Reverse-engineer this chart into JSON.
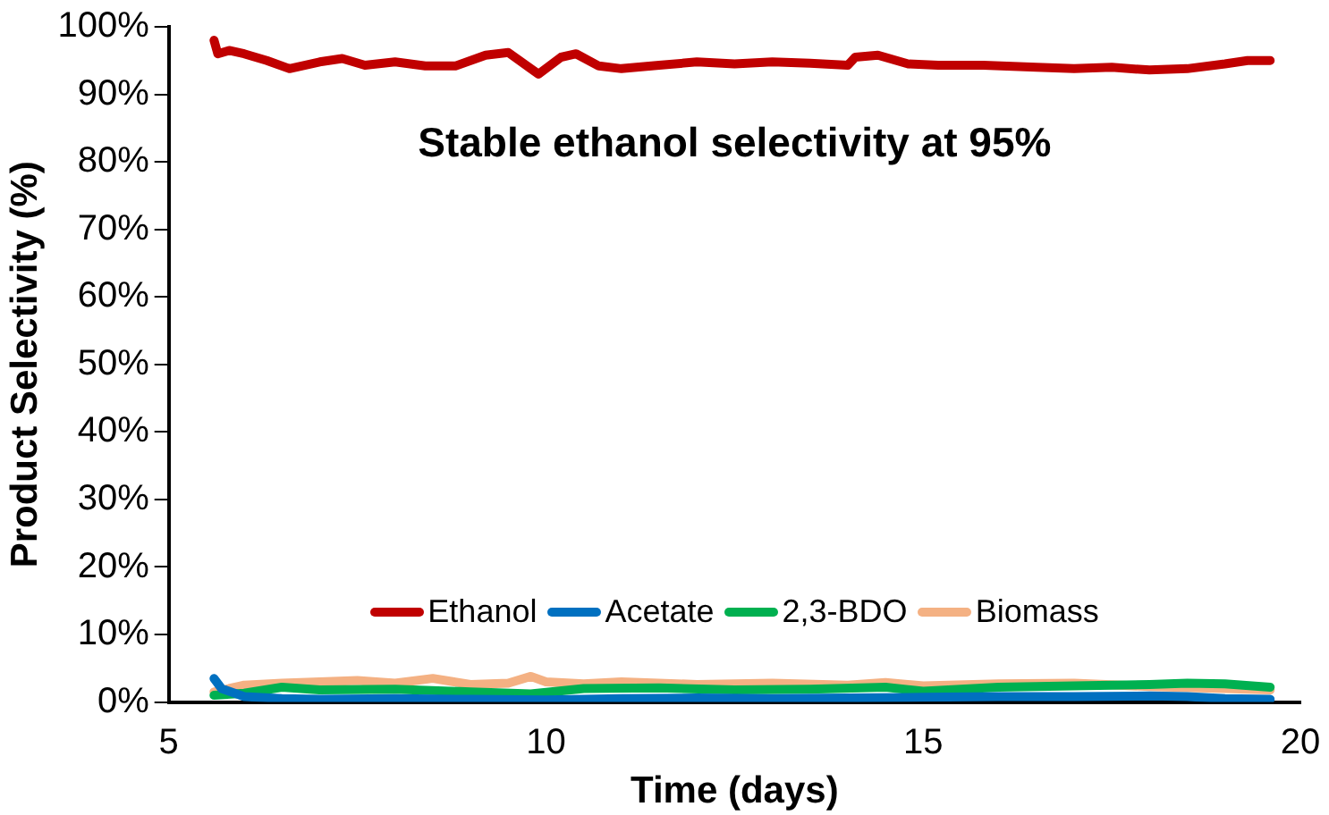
{
  "chart_data": {
    "type": "line",
    "xlabel": "Time (days)",
    "ylabel": "Product Selectivity (%)",
    "annotations": [
      "Stable ethanol selectivity at 95%"
    ],
    "xlim": [
      5,
      20
    ],
    "xticks": [
      5,
      10,
      15,
      20
    ],
    "ylim": [
      0,
      100
    ],
    "yticks": [
      {
        "value": 0,
        "label": "0%"
      },
      {
        "value": 10,
        "label": "10%"
      },
      {
        "value": 20,
        "label": "20%"
      },
      {
        "value": 30,
        "label": "30%"
      },
      {
        "value": 40,
        "label": "40%"
      },
      {
        "value": 50,
        "label": "50%"
      },
      {
        "value": 60,
        "label": "60%"
      },
      {
        "value": 70,
        "label": "70%"
      },
      {
        "value": 80,
        "label": "80%"
      },
      {
        "value": 90,
        "label": "90%"
      },
      {
        "value": 100,
        "label": "100%"
      }
    ],
    "grid": false,
    "legend": "bottom",
    "marker": "none",
    "line_style": "solid",
    "series": [
      {
        "name": "Ethanol",
        "color": "#c00000",
        "x": [
          5.6,
          5.65,
          5.8,
          6.0,
          6.3,
          6.6,
          7.0,
          7.3,
          7.6,
          8.0,
          8.4,
          8.8,
          9.2,
          9.5,
          9.8,
          9.9,
          10.2,
          10.4,
          10.7,
          11.0,
          11.5,
          12.0,
          12.5,
          13.0,
          13.5,
          14.0,
          14.1,
          14.4,
          14.8,
          15.2,
          15.8,
          16.5,
          17.0,
          17.5,
          18.0,
          18.5,
          19.0,
          19.3,
          19.6
        ],
        "values": [
          98,
          96,
          96.5,
          96,
          95,
          93.8,
          94.8,
          95.3,
          94.3,
          94.8,
          94.2,
          94.2,
          95.8,
          96.2,
          93.8,
          93,
          95.5,
          96,
          94.2,
          93.8,
          94.3,
          94.8,
          94.5,
          94.8,
          94.6,
          94.3,
          95.5,
          95.8,
          94.5,
          94.3,
          94.3,
          94,
          93.8,
          94,
          93.6,
          93.8,
          94.5,
          95,
          95
        ]
      },
      {
        "name": "Acetate",
        "color": "#0070c0",
        "x": [
          5.6,
          5.7,
          6.0,
          6.5,
          7.0,
          8.0,
          9.0,
          10.0,
          11.0,
          12.0,
          13.0,
          14.0,
          15.0,
          16.0,
          17.0,
          18.0,
          18.5,
          19.0,
          19.6
        ],
        "values": [
          3.5,
          2,
          0.8,
          0.5,
          0.4,
          0.5,
          0.4,
          0.3,
          0.5,
          0.6,
          0.5,
          0.6,
          0.7,
          0.8,
          0.8,
          0.9,
          0.8,
          0.5,
          0.4
        ]
      },
      {
        "name": "2,3-BDO",
        "color": "#00b050",
        "x": [
          5.6,
          6.0,
          6.5,
          7.0,
          8.0,
          9.0,
          9.8,
          10.5,
          11.5,
          12.5,
          13.5,
          14.5,
          15.0,
          16.0,
          17.0,
          18.0,
          18.5,
          19.0,
          19.6
        ],
        "values": [
          1,
          1.3,
          2.2,
          1.8,
          1.9,
          1.5,
          1.2,
          2,
          2.1,
          1.8,
          1.9,
          2.2,
          1.6,
          2.2,
          2.4,
          2.6,
          2.8,
          2.7,
          2.2
        ]
      },
      {
        "name": "Biomass",
        "color": "#f4b183",
        "x": [
          5.6,
          6.0,
          6.5,
          7.0,
          7.5,
          8.0,
          8.5,
          9.0,
          9.5,
          9.8,
          10.0,
          10.5,
          11.0,
          12.0,
          13.0,
          14.0,
          14.5,
          15.0,
          16.0,
          17.0,
          18.0,
          19.0,
          19.6
        ],
        "values": [
          1.5,
          2.5,
          2.8,
          3,
          3.2,
          2.8,
          3.5,
          2.6,
          2.8,
          3.8,
          3,
          2.7,
          3,
          2.6,
          2.8,
          2.5,
          2.9,
          2.4,
          2.7,
          2.8,
          2.3,
          2,
          1.8
        ]
      }
    ]
  }
}
